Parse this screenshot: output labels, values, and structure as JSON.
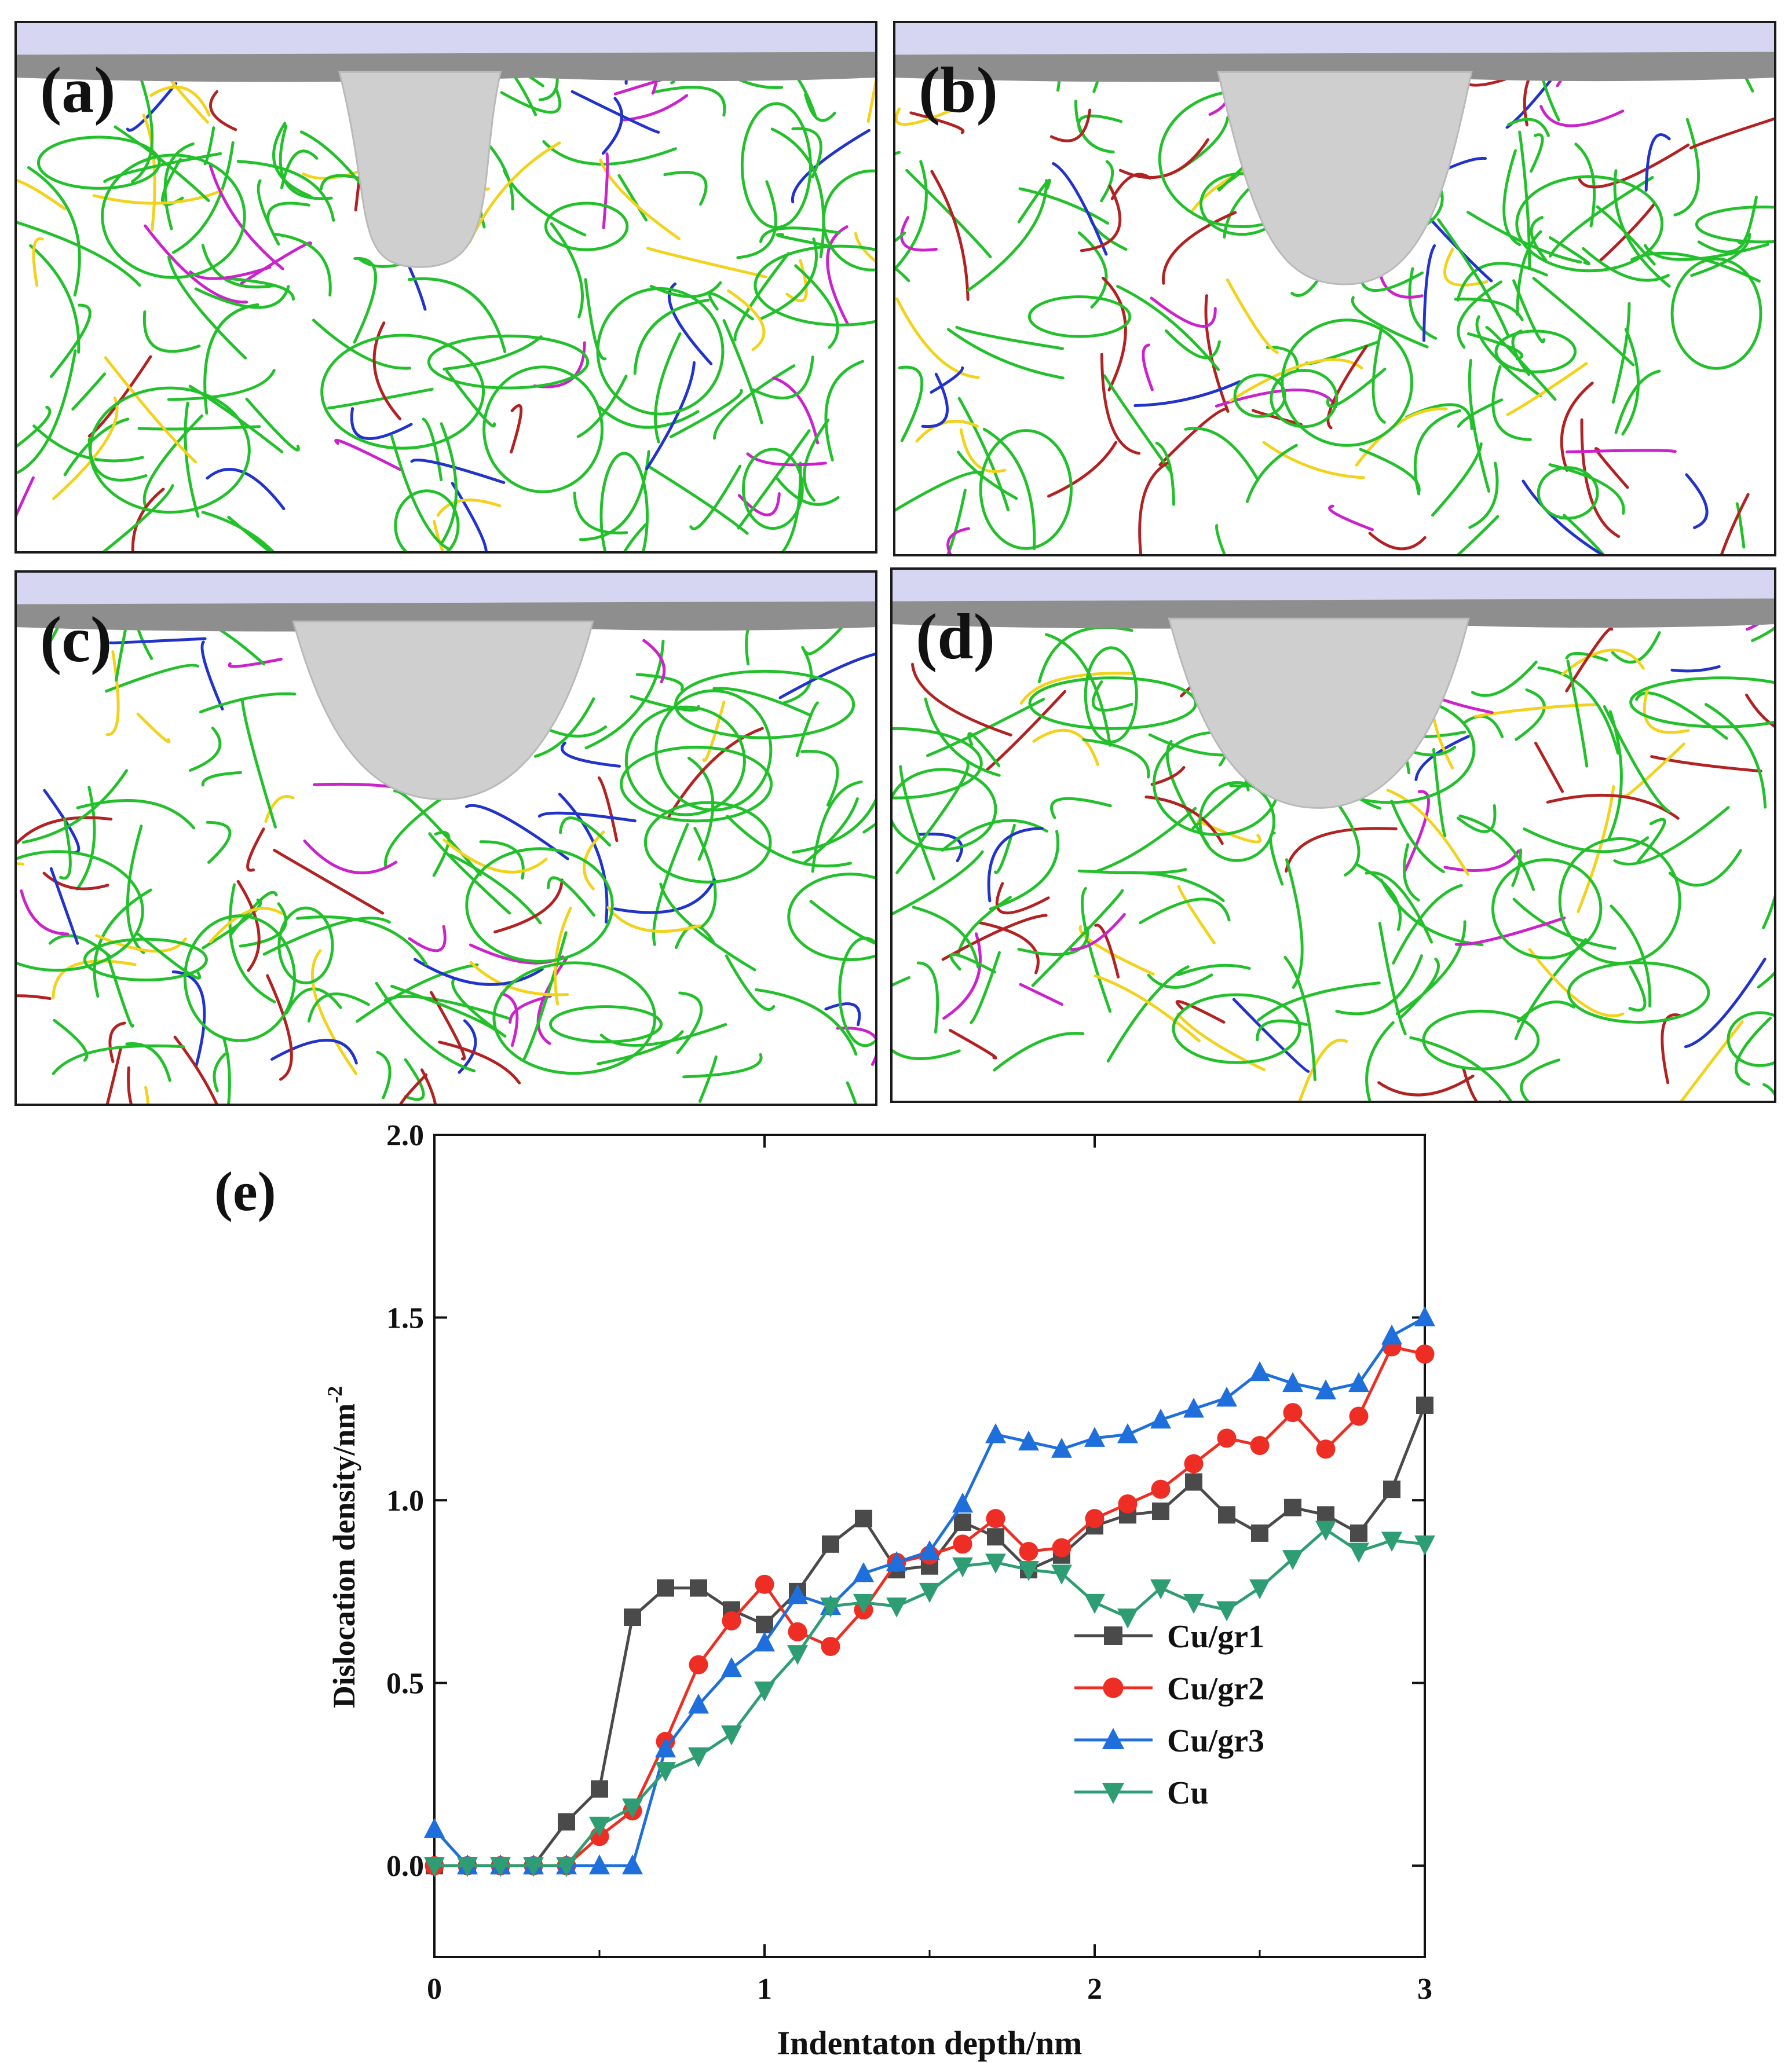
{
  "panels": [
    {
      "id": "a",
      "label": "(a)"
    },
    {
      "id": "b",
      "label": "(b)"
    },
    {
      "id": "c",
      "label": "(c)"
    },
    {
      "id": "d",
      "label": "(d)"
    }
  ],
  "legend_colors": {
    "perfect": "#22c02a",
    "shockley": "#22c02a",
    "stair_rod": "#cc22cc",
    "hirth": "#f2d21a",
    "frank": "#2233cc",
    "other": "#b22222",
    "surface_top": "#d6d6f2",
    "surface_mesh": "#cfcfcf"
  },
  "chart_data": {
    "type": "line",
    "panel_label": "(e)",
    "xlabel": "Indentaton depth/nm",
    "ylabel": "Dislocation density/nm",
    "ylabel_sup": "-2",
    "xlim": [
      0,
      3
    ],
    "ylim": [
      -0.25,
      2.0
    ],
    "xticks": [
      "0",
      "1",
      "2",
      "3"
    ],
    "yticks": [
      "0.0",
      "0.5",
      "1.0",
      "1.5",
      "2.0"
    ],
    "legend_position": "lower-right",
    "grid": false,
    "x": [
      0,
      0.1,
      0.2,
      0.3,
      0.4,
      0.5,
      0.6,
      0.7,
      0.8,
      0.9,
      1.0,
      1.1,
      1.2,
      1.3,
      1.4,
      1.5,
      1.6,
      1.7,
      1.8,
      1.9,
      2.0,
      2.1,
      2.2,
      2.3,
      2.4,
      2.5,
      2.6,
      2.7,
      2.8,
      2.9,
      3.0
    ],
    "series": [
      {
        "name": "Cu/gr1",
        "color": "#4a4a4a",
        "marker": "square",
        "values": [
          0.0,
          0.0,
          0.0,
          0.0,
          0.12,
          0.21,
          0.68,
          0.76,
          0.76,
          0.7,
          0.66,
          0.75,
          0.88,
          0.95,
          0.81,
          0.82,
          0.94,
          0.9,
          0.81,
          0.85,
          0.93,
          0.96,
          0.97,
          1.05,
          0.96,
          0.91,
          0.98,
          0.96,
          0.91,
          1.03,
          1.26
        ]
      },
      {
        "name": "Cu/gr2",
        "color": "#ee2e24",
        "marker": "circle",
        "values": [
          0.0,
          0.0,
          0.0,
          0.0,
          0.0,
          0.08,
          0.15,
          0.34,
          0.55,
          0.67,
          0.77,
          0.64,
          0.6,
          0.7,
          0.83,
          0.85,
          0.88,
          0.95,
          0.86,
          0.87,
          0.95,
          0.99,
          1.03,
          1.1,
          1.17,
          1.15,
          1.24,
          1.14,
          1.23,
          1.42,
          1.4
        ]
      },
      {
        "name": "Cu/gr3",
        "color": "#1e6fdc",
        "marker": "triangle-up",
        "values": [
          0.1,
          0.0,
          0.0,
          0.0,
          0.0,
          0.0,
          0.0,
          0.32,
          0.44,
          0.54,
          0.61,
          0.74,
          0.71,
          0.8,
          0.83,
          0.86,
          0.99,
          1.18,
          1.16,
          1.14,
          1.17,
          1.18,
          1.22,
          1.25,
          1.28,
          1.35,
          1.32,
          1.3,
          1.32,
          1.45,
          1.5
        ]
      },
      {
        "name": "Cu",
        "color": "#2f9d74",
        "marker": "triangle-down",
        "values": [
          0.0,
          0.0,
          0.0,
          0.0,
          0.0,
          0.11,
          0.16,
          0.26,
          0.3,
          0.36,
          0.48,
          0.58,
          0.71,
          0.72,
          0.71,
          0.75,
          0.82,
          0.83,
          0.81,
          0.8,
          0.72,
          0.68,
          0.76,
          0.72,
          0.7,
          0.76,
          0.84,
          0.92,
          0.86,
          0.89,
          0.88
        ]
      }
    ]
  }
}
